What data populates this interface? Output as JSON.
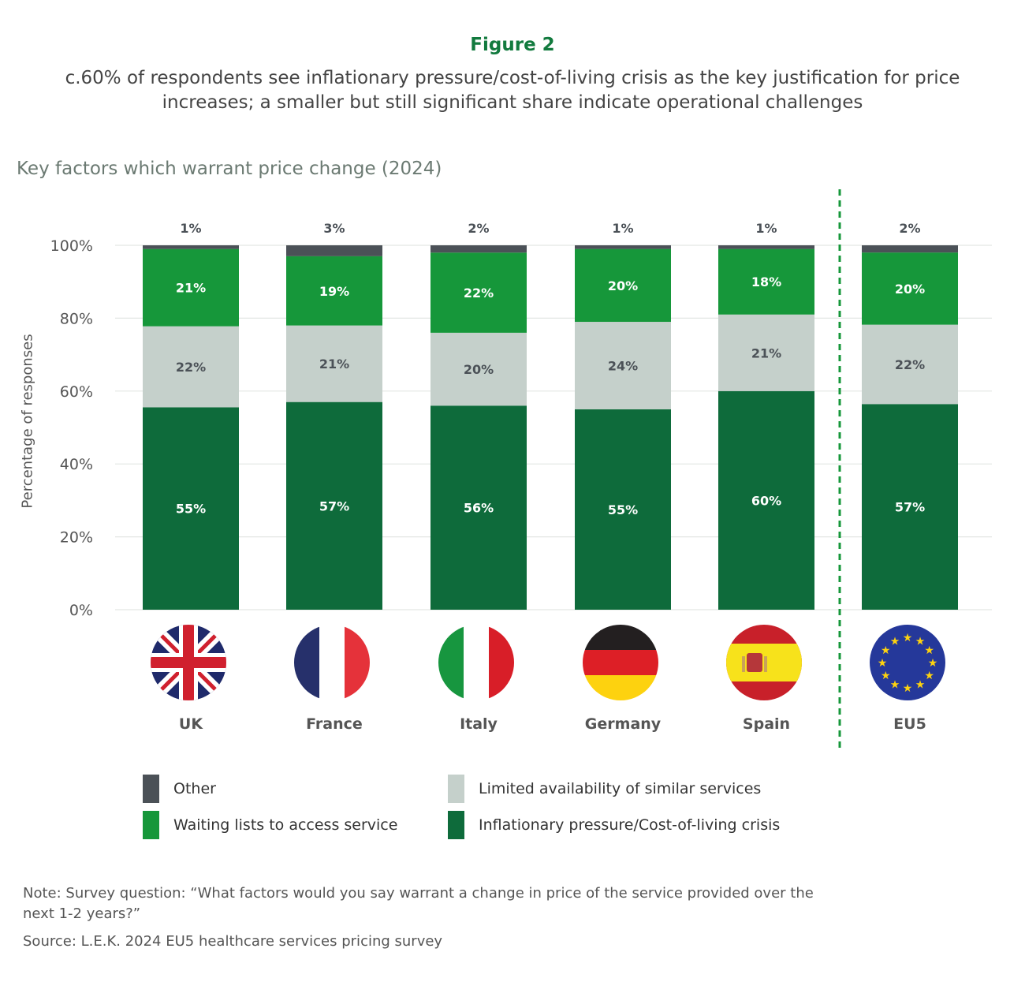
{
  "header": {
    "figure_label": "Figure 2",
    "subtitle": "c.60% of respondents see inflationary pressure/cost-of-living crisis as the key justification for price increases; a smaller but still significant share indicate operational challenges"
  },
  "chart_data": {
    "type": "bar",
    "stacked": true,
    "title": "Key factors which warrant price change (2024)",
    "ylabel": "Percentage of responses",
    "xlabel": "",
    "ylim": [
      0,
      100
    ],
    "yticks": [
      "0%",
      "20%",
      "40%",
      "60%",
      "80%",
      "100%"
    ],
    "grid": true,
    "legend_placement": "bottom",
    "categories": [
      "UK",
      "France",
      "Italy",
      "Germany",
      "Spain",
      "EU5"
    ],
    "category_icons": [
      "uk-flag-icon",
      "france-flag-icon",
      "italy-flag-icon",
      "germany-flag-icon",
      "spain-flag-icon",
      "eu-flag-icon"
    ],
    "divider_before": "EU5",
    "series": [
      {
        "name": "Inflationary pressure/Cost-of-living crisis",
        "color": "#0e6b3b",
        "values": [
          55,
          57,
          56,
          55,
          60,
          57
        ]
      },
      {
        "name": "Limited availability of similar services",
        "color": "#c5d0cb",
        "values": [
          22,
          21,
          20,
          24,
          21,
          22
        ]
      },
      {
        "name": "Waiting lists to access service",
        "color": "#16973a",
        "values": [
          21,
          19,
          22,
          20,
          18,
          20
        ]
      },
      {
        "name": "Other",
        "color": "#4b5157",
        "values": [
          1,
          3,
          2,
          1,
          1,
          2
        ]
      }
    ]
  },
  "legend": [
    {
      "label": "Other",
      "color": "#4b5157"
    },
    {
      "label": "Limited availability of similar services",
      "color": "#c5d0cb"
    },
    {
      "label": "Waiting lists to access service",
      "color": "#16973a"
    },
    {
      "label": "Inflationary pressure/Cost-of-living crisis",
      "color": "#0e6b3b"
    }
  ],
  "footer": {
    "note": "Note: Survey question: “What factors would you say warrant a change in price of the service provided over the next 1-2 years?”",
    "source": "Source: L.E.K. 2024 EU5 healthcare services pricing survey"
  }
}
